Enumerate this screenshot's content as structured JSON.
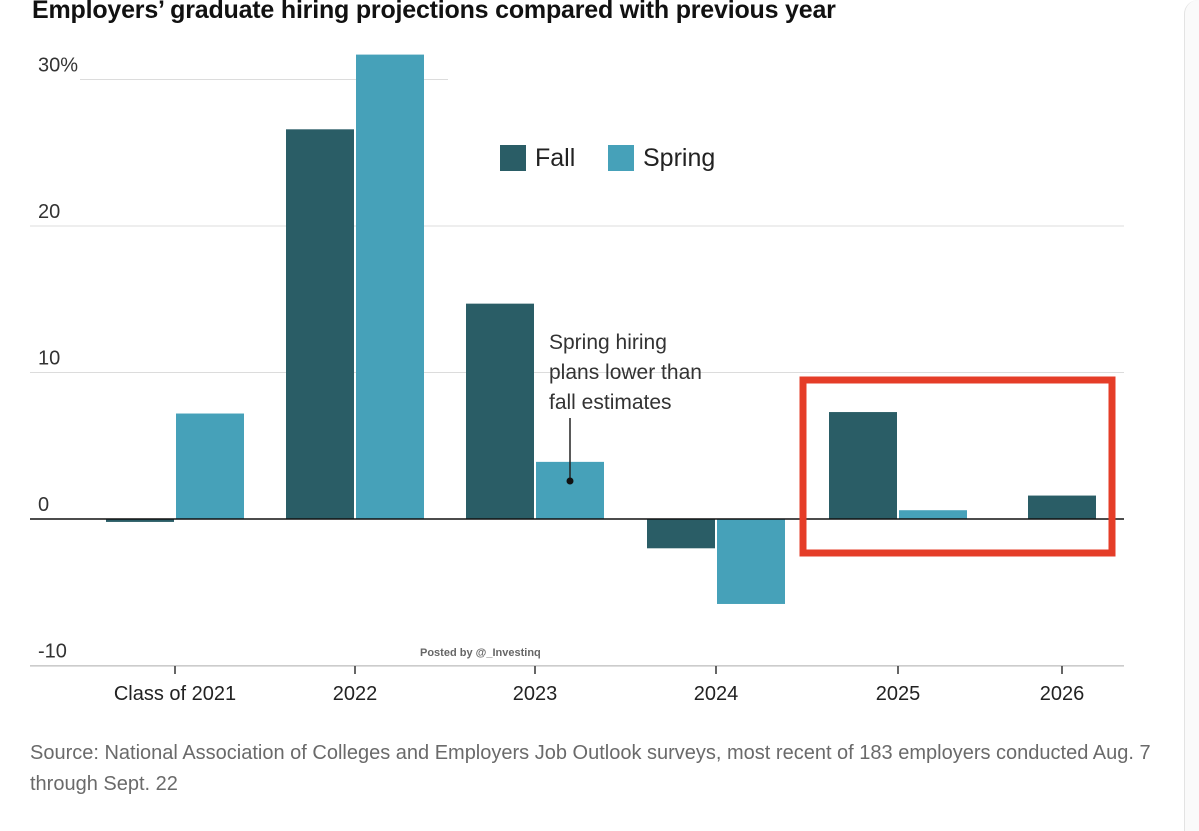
{
  "chart_data": {
    "type": "bar",
    "title": "Employers’ graduate hiring projections compared with previous year",
    "categories": [
      "Class of 2021",
      "2022",
      "2023",
      "2024",
      "2025",
      "2026"
    ],
    "series": [
      {
        "name": "Fall",
        "color": "#2a5d66",
        "values": [
          -0.2,
          26.6,
          14.7,
          -2.0,
          7.3,
          1.6
        ]
      },
      {
        "name": "Spring",
        "color": "#46a1b9",
        "values": [
          7.2,
          31.7,
          3.9,
          -5.8,
          0.6,
          null
        ]
      }
    ],
    "ylim": [
      -10,
      32
    ],
    "yticks": [
      -10,
      0,
      10,
      20,
      30
    ],
    "ytick_labels": [
      "-10",
      "0",
      "10",
      "20",
      "30%"
    ],
    "xlabel": "",
    "ylabel": "",
    "legend": "top-center",
    "grid": true,
    "annotation": {
      "lines": [
        "Spring hiring",
        "plans lower than",
        "fall estimates"
      ],
      "category": "2023",
      "series": "Spring"
    },
    "highlight": {
      "categories": [
        "2025",
        "2026"
      ],
      "color": "#e53d28"
    }
  },
  "watermark": "Posted by @_Investinq",
  "source": "Source: National Association of Colleges and Employers Job Outlook surveys, most recent of 183 employers conducted Aug. 7 through Sept. 22"
}
